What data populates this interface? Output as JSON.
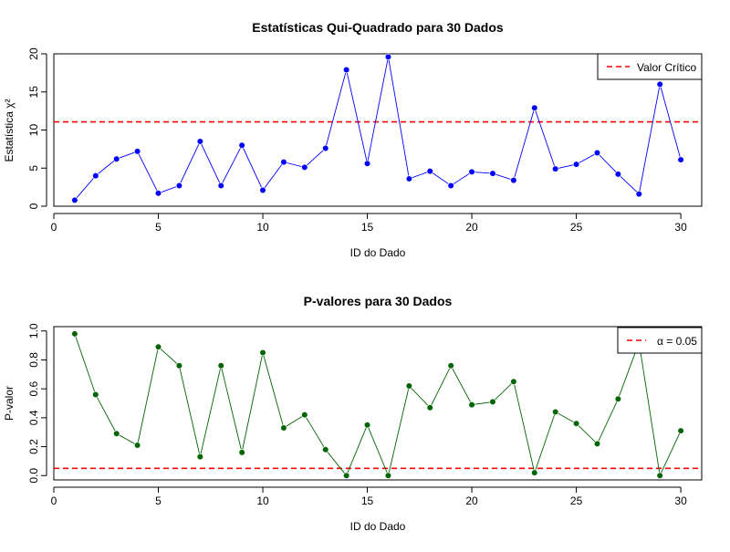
{
  "chart_data": [
    {
      "type": "line",
      "title": "Estatísticas Qui-Quadrado para 30 Dados",
      "xlabel": "ID do Dado",
      "ylabel": "Estatística χ²",
      "xlim": [
        0,
        31
      ],
      "ylim": [
        0,
        20
      ],
      "xticks": [
        "0",
        "5",
        "10",
        "15",
        "20",
        "25",
        "30"
      ],
      "yticks": [
        "0",
        "5",
        "10",
        "15",
        "20"
      ],
      "x": [
        1,
        2,
        3,
        4,
        5,
        6,
        7,
        8,
        9,
        10,
        11,
        12,
        13,
        14,
        15,
        16,
        17,
        18,
        19,
        20,
        21,
        22,
        23,
        24,
        25,
        26,
        27,
        28,
        29,
        30
      ],
      "series": [
        {
          "values": [
            0.8,
            4.0,
            6.2,
            7.2,
            1.7,
            2.7,
            8.5,
            2.7,
            8.0,
            2.1,
            5.8,
            5.1,
            7.6,
            17.9,
            5.6,
            19.6,
            3.6,
            4.6,
            2.7,
            4.5,
            4.3,
            3.4,
            12.9,
            4.9,
            5.5,
            7.0,
            4.2,
            1.6,
            16.0,
            6.1
          ],
          "color": "#0000ff"
        }
      ],
      "reference_line": {
        "value": 11.07,
        "color": "#ff0000",
        "style": "dashed"
      },
      "legend": {
        "label": "Valor Crítico",
        "position": "top-right"
      }
    },
    {
      "type": "line",
      "title": "P-valores para 30 Dados",
      "xlabel": "ID do Dado",
      "ylabel": "P-valor",
      "xlim": [
        0,
        31
      ],
      "ylim": [
        -0.03,
        1.03
      ],
      "xticks": [
        "0",
        "5",
        "10",
        "15",
        "20",
        "25",
        "30"
      ],
      "yticks": [
        "0.0",
        "0.2",
        "0.4",
        "0.6",
        "0.8",
        "1.0"
      ],
      "x": [
        1,
        2,
        3,
        4,
        5,
        6,
        7,
        8,
        9,
        10,
        11,
        12,
        13,
        14,
        15,
        16,
        17,
        18,
        19,
        20,
        21,
        22,
        23,
        24,
        25,
        26,
        27,
        28,
        29,
        30
      ],
      "series": [
        {
          "values": [
            0.98,
            0.56,
            0.29,
            0.21,
            0.89,
            0.76,
            0.13,
            0.76,
            0.16,
            0.85,
            0.33,
            0.42,
            0.18,
            0.0,
            0.35,
            0.0,
            0.62,
            0.47,
            0.76,
            0.49,
            0.51,
            0.65,
            0.02,
            0.44,
            0.36,
            0.22,
            0.53,
            0.92,
            0.0,
            0.31
          ],
          "color": "#006400"
        }
      ],
      "reference_line": {
        "value": 0.05,
        "color": "#ff0000",
        "style": "dashed"
      },
      "legend": {
        "label": "α = 0.05",
        "position": "top-right"
      }
    }
  ]
}
